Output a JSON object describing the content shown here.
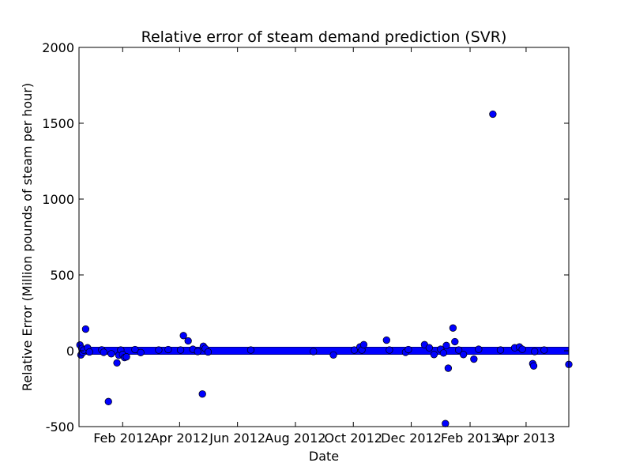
{
  "chart_data": {
    "type": "scatter",
    "title": "Relative error of steam demand prediction (SVR)",
    "xlabel": "Date",
    "ylabel": "Relative Error (Million pounds of steam per hour)",
    "xlim": [
      "2011-12-17",
      "2013-05-16"
    ],
    "ylim": [
      -500,
      2000
    ],
    "yticks": [
      -500,
      0,
      500,
      1000,
      1500,
      2000
    ],
    "xticks": [
      {
        "date": "2012-02-01",
        "label": "Feb 2012"
      },
      {
        "date": "2012-04-01",
        "label": "Apr 2012"
      },
      {
        "date": "2012-06-01",
        "label": "Jun 2012"
      },
      {
        "date": "2012-08-01",
        "label": "Aug 2012"
      },
      {
        "date": "2012-10-01",
        "label": "Oct 2012"
      },
      {
        "date": "2012-12-01",
        "label": "Dec 2012"
      },
      {
        "date": "2013-02-01",
        "label": "Feb 2013"
      },
      {
        "date": "2013-04-01",
        "label": "Apr 2013"
      }
    ],
    "grid": false,
    "marker_color": "#0000ff",
    "series": [
      {
        "baseline": {
          "start": "2011-12-17",
          "end": "2013-05-16",
          "value": 0
        },
        "points": [
          {
            "x": "2011-12-18",
            "y": 38
          },
          {
            "x": "2011-12-19",
            "y": -28
          },
          {
            "x": "2011-12-20",
            "y": 15
          },
          {
            "x": "2011-12-21",
            "y": -12
          },
          {
            "x": "2011-12-22",
            "y": 5
          },
          {
            "x": "2011-12-24",
            "y": 143
          },
          {
            "x": "2011-12-26",
            "y": 20
          },
          {
            "x": "2011-12-28",
            "y": -8
          },
          {
            "x": "2012-01-10",
            "y": 6
          },
          {
            "x": "2012-01-12",
            "y": -10
          },
          {
            "x": "2012-01-17",
            "y": -335
          },
          {
            "x": "2012-01-20",
            "y": -20
          },
          {
            "x": "2012-01-26",
            "y": -80
          },
          {
            "x": "2012-01-28",
            "y": -30
          },
          {
            "x": "2012-01-30",
            "y": 5
          },
          {
            "x": "2012-02-01",
            "y": -25
          },
          {
            "x": "2012-02-03",
            "y": -45
          },
          {
            "x": "2012-02-05",
            "y": -40
          },
          {
            "x": "2012-02-14",
            "y": 8
          },
          {
            "x": "2012-02-20",
            "y": -12
          },
          {
            "x": "2012-03-10",
            "y": 5
          },
          {
            "x": "2012-03-20",
            "y": 8
          },
          {
            "x": "2012-04-02",
            "y": 5
          },
          {
            "x": "2012-04-05",
            "y": 100
          },
          {
            "x": "2012-04-10",
            "y": 65
          },
          {
            "x": "2012-04-15",
            "y": 10
          },
          {
            "x": "2012-04-20",
            "y": -5
          },
          {
            "x": "2012-04-25",
            "y": -285
          },
          {
            "x": "2012-04-26",
            "y": 30
          },
          {
            "x": "2012-04-28",
            "y": 15
          },
          {
            "x": "2012-05-01",
            "y": -8
          },
          {
            "x": "2012-06-15",
            "y": 5
          },
          {
            "x": "2012-08-20",
            "y": -5
          },
          {
            "x": "2012-09-10",
            "y": -28
          },
          {
            "x": "2012-10-02",
            "y": 5
          },
          {
            "x": "2012-10-08",
            "y": 25
          },
          {
            "x": "2012-10-10",
            "y": 5
          },
          {
            "x": "2012-10-12",
            "y": 40
          },
          {
            "x": "2012-11-05",
            "y": 70
          },
          {
            "x": "2012-11-08",
            "y": 5
          },
          {
            "x": "2012-11-25",
            "y": -10
          },
          {
            "x": "2012-11-28",
            "y": 8
          },
          {
            "x": "2012-12-15",
            "y": 40
          },
          {
            "x": "2012-12-20",
            "y": 20
          },
          {
            "x": "2012-12-25",
            "y": -25
          },
          {
            "x": "2013-01-01",
            "y": 10
          },
          {
            "x": "2013-01-04",
            "y": -15
          },
          {
            "x": "2013-01-06",
            "y": -480
          },
          {
            "x": "2013-01-07",
            "y": 35
          },
          {
            "x": "2013-01-09",
            "y": -115
          },
          {
            "x": "2013-01-14",
            "y": 150
          },
          {
            "x": "2013-01-16",
            "y": 60
          },
          {
            "x": "2013-01-20",
            "y": 5
          },
          {
            "x": "2013-01-25",
            "y": -25
          },
          {
            "x": "2013-02-05",
            "y": -55
          },
          {
            "x": "2013-02-10",
            "y": 10
          },
          {
            "x": "2013-02-25",
            "y": 1560
          },
          {
            "x": "2013-03-05",
            "y": 5
          },
          {
            "x": "2013-03-20",
            "y": 20
          },
          {
            "x": "2013-03-25",
            "y": 25
          },
          {
            "x": "2013-03-28",
            "y": 10
          },
          {
            "x": "2013-04-08",
            "y": -85
          },
          {
            "x": "2013-04-09",
            "y": -100
          },
          {
            "x": "2013-04-10",
            "y": -5
          },
          {
            "x": "2013-04-20",
            "y": 5
          },
          {
            "x": "2013-05-16",
            "y": -90
          }
        ]
      }
    ]
  }
}
